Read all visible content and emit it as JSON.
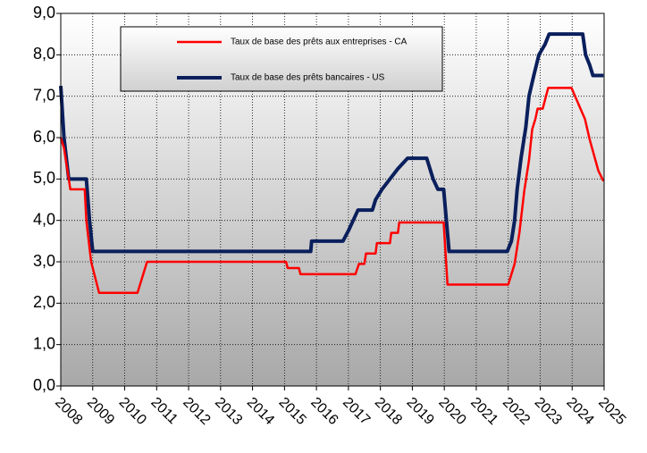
{
  "chart_data": {
    "type": "line",
    "xlim": [
      2008,
      2025
    ],
    "xticks": [
      2008,
      2009,
      2010,
      2011,
      2012,
      2013,
      2014,
      2015,
      2016,
      2017,
      2018,
      2019,
      2020,
      2021,
      2022,
      2023,
      2024,
      2025
    ],
    "ylim": [
      0,
      9
    ],
    "yticks": [
      {
        "value": 0,
        "label": "0,0"
      },
      {
        "value": 1,
        "label": "1,0"
      },
      {
        "value": 2,
        "label": "2,0"
      },
      {
        "value": 3,
        "label": "3,0"
      },
      {
        "value": 4,
        "label": "4,0"
      },
      {
        "value": 5,
        "label": "5,0"
      },
      {
        "value": 6,
        "label": "6,0"
      },
      {
        "value": 7,
        "label": "7,0"
      },
      {
        "value": 8,
        "label": "8,0"
      },
      {
        "value": 9,
        "label": "9,0"
      }
    ],
    "grid": true,
    "legend": "top",
    "series": [
      {
        "name": "Taux de base des prêts aux entreprises - CA",
        "color": "#ff0000",
        "x": [
          2008.0,
          2008.1,
          2008.3,
          2008.75,
          2008.8,
          2008.95,
          2009.2,
          2010.4,
          2010.6,
          2010.7,
          2015.05,
          2015.1,
          2015.45,
          2015.5,
          2017.22,
          2017.33,
          2017.5,
          2017.55,
          2017.85,
          2017.89,
          2018.3,
          2018.34,
          2018.55,
          2018.59,
          2019.98,
          2020.1,
          2022.0,
          2022.2,
          2022.35,
          2022.5,
          2022.65,
          2022.75,
          2022.85,
          2022.92,
          2023.08,
          2023.25,
          2023.98,
          2024.12,
          2024.26,
          2024.4,
          2024.55,
          2024.73,
          2024.82,
          2024.98
        ],
        "values": [
          6.0,
          5.75,
          4.75,
          4.75,
          4.0,
          3.0,
          2.25,
          2.25,
          2.75,
          3.0,
          3.0,
          2.85,
          2.85,
          2.7,
          2.7,
          2.95,
          2.95,
          3.2,
          3.2,
          3.45,
          3.45,
          3.7,
          3.7,
          3.95,
          3.95,
          2.45,
          2.45,
          2.95,
          3.7,
          4.7,
          5.45,
          6.2,
          6.45,
          6.7,
          6.7,
          7.2,
          7.2,
          6.95,
          6.7,
          6.45,
          5.95,
          5.45,
          5.2,
          4.95
        ]
      },
      {
        "name": "Taux de base des prêts bancaires - US",
        "color": "#0a1f5c",
        "x": [
          2008.0,
          2008.1,
          2008.25,
          2008.8,
          2008.9,
          2009.0,
          2015.82,
          2015.85,
          2016.83,
          2017.0,
          2017.15,
          2017.3,
          2017.75,
          2017.85,
          2018.05,
          2018.3,
          2018.55,
          2018.85,
          2019.45,
          2019.55,
          2019.65,
          2019.8,
          2019.98,
          2020.15,
          2021.97,
          2022.1,
          2022.2,
          2022.28,
          2022.4,
          2022.55,
          2022.65,
          2022.8,
          2022.88,
          2022.96,
          2023.15,
          2023.28,
          2024.33,
          2024.42,
          2024.55,
          2024.65,
          2024.98
        ],
        "values": [
          7.25,
          6.0,
          5.0,
          5.0,
          4.0,
          3.25,
          3.25,
          3.5,
          3.5,
          3.75,
          4.0,
          4.25,
          4.25,
          4.5,
          4.75,
          5.0,
          5.25,
          5.5,
          5.5,
          5.25,
          5.0,
          4.75,
          4.75,
          3.25,
          3.25,
          3.5,
          4.0,
          4.75,
          5.5,
          6.25,
          7.0,
          7.5,
          7.75,
          8.0,
          8.25,
          8.5,
          8.5,
          8.0,
          7.75,
          7.5,
          7.5
        ]
      }
    ]
  }
}
